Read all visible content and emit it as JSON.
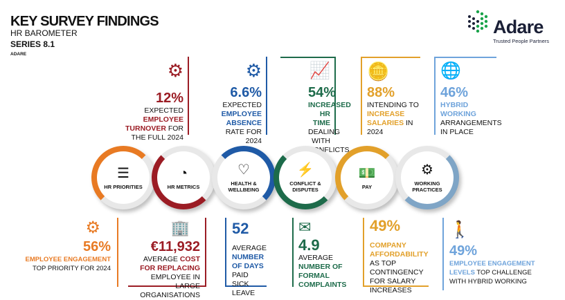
{
  "header": {
    "title": "KEY SURVEY FINDINGS",
    "subtitle": "HR BAROMETER",
    "series": "SERIES 8.1",
    "source": "ADARE"
  },
  "logo": {
    "name": "Adare",
    "tagline": "Trusted People Partners"
  },
  "colors": {
    "red": "#9b1c24",
    "blue": "#1f5aa6",
    "green": "#1d6b4a",
    "gold": "#e2a02a",
    "lightblue": "#6ea3db",
    "orange": "#e87a23",
    "steel": "#7fa5c6"
  },
  "top_stats": [
    {
      "value": "12%",
      "pre": "EXPECTED ",
      "hl": "EMPLOYEE TURNOVER",
      "post": " FOR THE FULL 2024"
    },
    {
      "value": "6.6%",
      "pre": "EXPECTED ",
      "hl": "EMPLOYEE ABSENCE",
      "post": " RATE FOR 2024"
    },
    {
      "value": "54%",
      "pre": "",
      "hl": "INCREASED HR TIME",
      "post": " DEALING WITH CONFLICTS"
    },
    {
      "value": "88%",
      "pre": "INTENDING TO ",
      "hl": "INCREASE SALARIES",
      "post": " IN 2024"
    },
    {
      "value": "46%",
      "pre": "",
      "hl": "HYBRID WORKING",
      "post": " ARRANGEMENTS IN PLACE"
    }
  ],
  "categories": [
    {
      "label": "HR PRIORITIES",
      "icon": "priority-list-icon"
    },
    {
      "label": "HR METRICS",
      "icon": "metrics-icon"
    },
    {
      "label": "HEALTH & WELLBEING",
      "icon": "heart-hands-icon"
    },
    {
      "label": "CONFLICT & DISPUTES",
      "icon": "conflict-heads-icon"
    },
    {
      "label": "PAY",
      "icon": "money-icon"
    },
    {
      "label": "WORKING PRACTICES",
      "icon": "gear-hands-icon"
    }
  ],
  "bottom_stats": [
    {
      "value": "56%",
      "pre": "",
      "hl": "EMPLOYEE ENGAGEMENT",
      "post": " TOP PRIORITY FOR 2024"
    },
    {
      "value": "€11,932",
      "pre": "AVERAGE ",
      "hl": "COST FOR REPLACING",
      "post": " EMPLOYEE IN LARGE ORGANISATIONS"
    },
    {
      "value": "52",
      "pre": "AVERAGE ",
      "hl": "NUMBER OF DAYS",
      "post": " PAID SICK LEAVE"
    },
    {
      "value": "4.9",
      "pre": "AVERAGE ",
      "hl": "NUMBER OF FORMAL COMPLAINTS",
      "post": ""
    },
    {
      "value": "49%",
      "pre": "",
      "hl": "COMPANY AFFORDABILITY",
      "post": " AS TOP CONTINGENCY FOR SALARY INCREASES"
    },
    {
      "value": "49%",
      "pre": "",
      "hl": "EMPLOYEE ENGAGEMENT LEVELS",
      "post": " TOP CHALLENGE WITH HYBRID WORKING"
    }
  ]
}
